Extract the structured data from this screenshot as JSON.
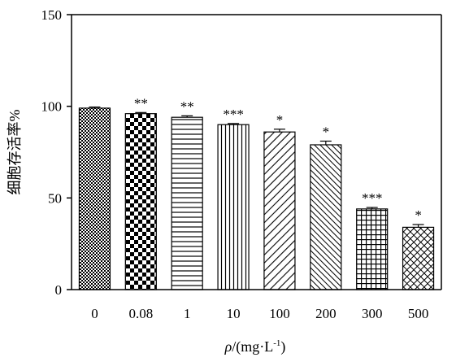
{
  "chart_data": {
    "type": "bar",
    "categories": [
      "0",
      "0.08",
      "1",
      "10",
      "100",
      "200",
      "300",
      "500"
    ],
    "values": [
      99,
      96,
      94,
      90,
      86,
      79,
      44,
      34
    ],
    "errors": [
      0.6,
      0.6,
      0.8,
      0.6,
      1.5,
      2.0,
      0.8,
      1.5
    ],
    "significance": [
      "",
      "**",
      "**",
      "***",
      "*",
      "*",
      "***",
      "*"
    ],
    "patterns": [
      "dots",
      "checker",
      "hlines",
      "vlines",
      "diag-up",
      "diag-down",
      "grid",
      "diamond"
    ],
    "ylabel": "细胞存活率%",
    "xlabel": {
      "rho": "ρ",
      "unit": "/(mg·L",
      "sup": "-1",
      "close": ")"
    },
    "ylim": [
      0,
      150
    ],
    "yticks": [
      0,
      50,
      100,
      150
    ],
    "grid": false,
    "colors": {
      "bar_stroke": "#000000",
      "background": "#ffffff"
    }
  }
}
